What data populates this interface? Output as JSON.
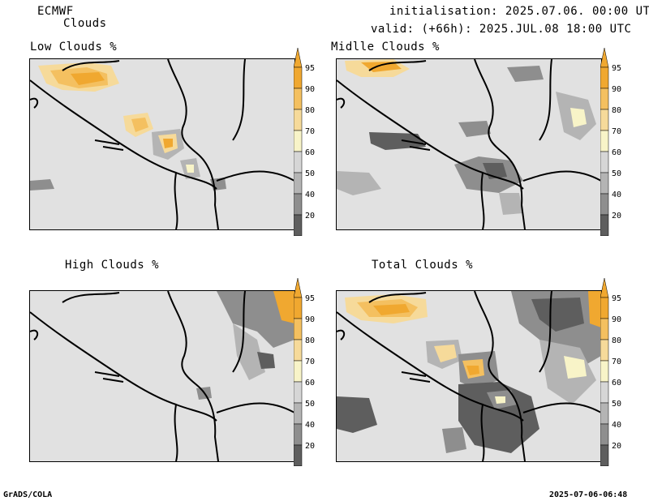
{
  "header": {
    "model": "ECMWF",
    "product": "Clouds",
    "initialisation": "initialisation: 2025.07.06. 00:00 UTC",
    "valid": "valid: (+66h): 2025.JUL.08 18:00 UTC"
  },
  "panels": [
    {
      "title": "Low Clouds %"
    },
    {
      "title": "Midlle Clouds %"
    },
    {
      "title": "High Clouds %"
    },
    {
      "title": "Total Clouds %"
    }
  ],
  "colorbar": {
    "levels": [
      "95",
      "90",
      "80",
      "70",
      "60",
      "50",
      "40",
      "20"
    ],
    "colors": {
      "over": "#f0a830",
      "c95": "#f0a830",
      "c90": "#f4c060",
      "c80": "#f6da9a",
      "c70": "#f8f4c8",
      "c60": "#d6d6d6",
      "c50": "#b4b4b4",
      "c40": "#8e8e8e",
      "c20": "#5e5e5e",
      "under": "#f4f4f4"
    }
  },
  "footer": {
    "left": "GrADS/COLA",
    "right": "2025-07-06-06:48"
  }
}
